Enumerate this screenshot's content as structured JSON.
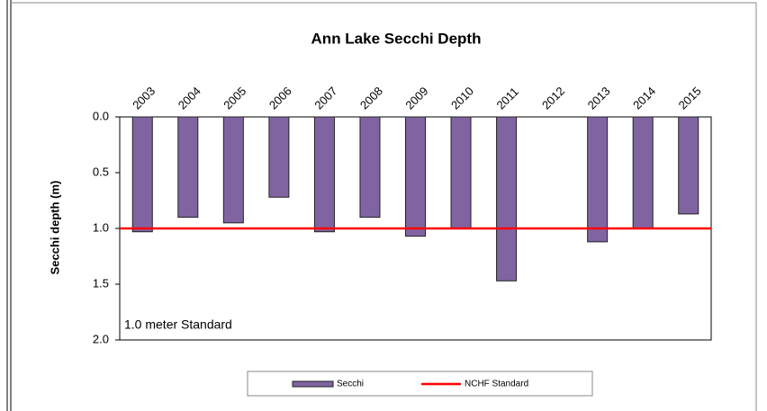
{
  "chart_data": {
    "type": "bar",
    "title": "Ann Lake Secchi Depth",
    "y_label": "Secchi depth (m)",
    "annotation": "1.0 meter Standard",
    "categories": [
      "2003",
      "2004",
      "2005",
      "2006",
      "2007",
      "2008",
      "2009",
      "2010",
      "2011",
      "2012",
      "2013",
      "2014",
      "2015"
    ],
    "series": [
      {
        "name": "Secchi",
        "color": "#8064a2",
        "values": [
          1.03,
          0.9,
          0.95,
          0.72,
          1.03,
          0.9,
          1.07,
          1.0,
          1.47,
          null,
          1.12,
          1.0,
          0.87
        ]
      }
    ],
    "reference_line": {
      "name": "NCHF Standard",
      "value": 1.0,
      "color": "#ff0000"
    },
    "ylim": [
      0,
      2
    ],
    "y_inverted": true,
    "yticks": [
      {
        "value": 0,
        "label": "0.0"
      },
      {
        "value": 0.5,
        "label": "0.5"
      },
      {
        "value": 1,
        "label": "1.0"
      },
      {
        "value": 1.5,
        "label": "1.5"
      },
      {
        "value": 2,
        "label": "2.0"
      }
    ],
    "grid": false
  }
}
